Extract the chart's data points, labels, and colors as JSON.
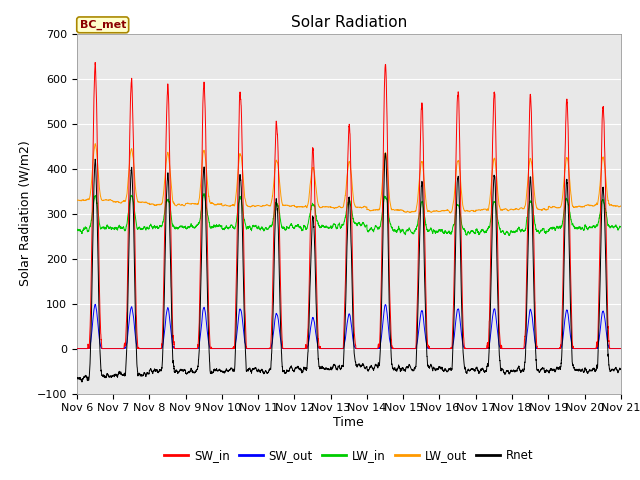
{
  "title": "Solar Radiation",
  "ylabel": "Solar Radiation (W/m2)",
  "xlabel": "Time",
  "ylim": [
    -100,
    700
  ],
  "yticks": [
    -100,
    0,
    100,
    200,
    300,
    400,
    500,
    600,
    700
  ],
  "xtick_labels": [
    "Nov 6",
    "Nov 7",
    "Nov 8",
    "Nov 9",
    "Nov 10",
    "Nov 11",
    "Nov 12",
    "Nov 13",
    "Nov 14",
    "Nov 15",
    "Nov 16",
    "Nov 17",
    "Nov 18",
    "Nov 19",
    "Nov 20",
    "Nov 21"
  ],
  "colors": {
    "SW_in": "#ff0000",
    "SW_out": "#0000ff",
    "LW_in": "#00cc00",
    "LW_out": "#ff9900",
    "Rnet": "#000000"
  },
  "legend_label": "BC_met",
  "background_color": "#e8e8e8",
  "sw_in_peaks": [
    625,
    600,
    580,
    585,
    570,
    505,
    440,
    495,
    625,
    545,
    570,
    570,
    560,
    555,
    540
  ],
  "title_fontsize": 11,
  "label_fontsize": 9,
  "tick_fontsize": 8
}
